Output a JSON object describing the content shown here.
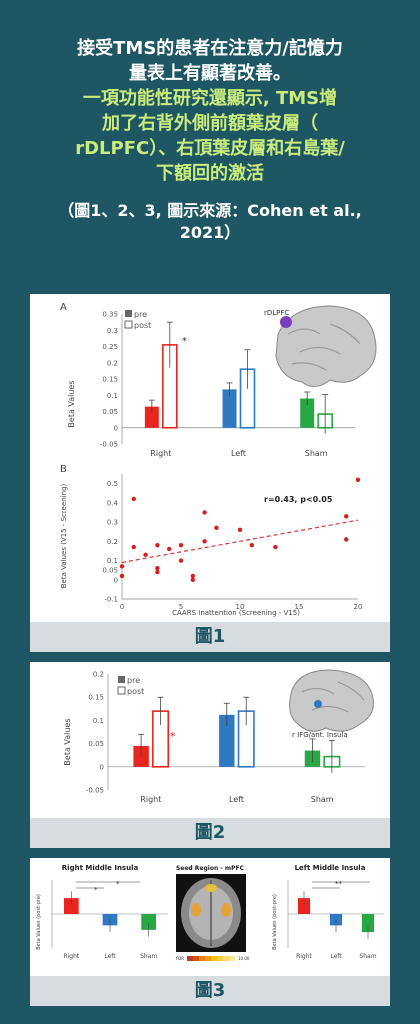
{
  "header": {
    "line1": "接受TMS的患者在注意力/記憶力",
    "line2": "量表上有顯著改善。",
    "line3": "一項功能性研究還顯示, TMS增",
    "line4": "加了右背外側前額葉皮層（",
    "line5": "rDLPFC）、右頂葉皮層和右島葉/",
    "line6": "下額回的激活",
    "citation": "（圖1、2、3, 圖示來源：Cohen et al., 2021）"
  },
  "figure1": {
    "caption": "圖1",
    "panelA": {
      "panel_label": "A",
      "brain_label": "rDLPFC",
      "legend_pre": "pre",
      "legend_post": "post",
      "ylabel": "Beta Values",
      "yticks": [
        "0.35",
        "0.3",
        "0.25",
        "0.2",
        "0.15",
        "0.1",
        "0.05",
        "0",
        "-0.05"
      ],
      "star": "*",
      "chart_data": {
        "type": "bar",
        "categories": [
          "Right",
          "Left",
          "Sham"
        ],
        "series": [
          {
            "name": "pre",
            "values": [
              0.065,
              0.118,
              0.09
            ],
            "errors": [
              0.02,
              0.02,
              0.02
            ]
          },
          {
            "name": "post",
            "values": [
              0.255,
              0.18,
              0.042
            ],
            "errors": [
              0.07,
              0.06,
              0.06
            ]
          }
        ],
        "ylim": [
          -0.05,
          0.35
        ],
        "colors": [
          "#e8251f",
          "#2f78c2",
          "#28a745"
        ]
      }
    },
    "panelB": {
      "panel_label": "B",
      "annotation": "r=0.43, p<0.05",
      "xlabel": "CAARS Inattention (Screening - V15)",
      "ylabel": "Beta Values (V15 - Screening)",
      "yticks": [
        "0.5",
        "0.4",
        "0.3",
        "0.2",
        "0.1",
        "0.05",
        "0",
        "-0.1"
      ],
      "xticks": [
        "0",
        "5",
        "10",
        "15",
        "20"
      ],
      "chart_data": {
        "type": "scatter",
        "x": [
          0,
          0,
          1,
          1,
          2,
          3,
          3,
          3,
          4,
          5,
          5,
          6,
          6,
          7,
          7,
          8,
          10,
          11,
          13,
          19,
          19,
          20
        ],
        "y": [
          0.07,
          0.02,
          0.17,
          0.42,
          0.13,
          0.18,
          0.06,
          0.04,
          0.16,
          0.1,
          0.18,
          0.02,
          0.0,
          0.35,
          0.2,
          0.27,
          0.26,
          0.18,
          0.17,
          0.21,
          0.33,
          0.52
        ],
        "trend": [
          [
            0,
            0.09
          ],
          [
            20,
            0.31
          ]
        ],
        "xlim": [
          0,
          20
        ],
        "ylim": [
          -0.1,
          0.55
        ]
      }
    }
  },
  "figure2": {
    "caption": "圖2",
    "brain_label": "r IFG/ant. Insula",
    "legend_pre": "pre",
    "legend_post": "post",
    "ylabel": "Beta Values",
    "yticks": [
      "0.2",
      "0.15",
      "0.1",
      "0.05",
      "0",
      "-0.05"
    ],
    "star": "*",
    "chart_data": {
      "type": "bar",
      "categories": [
        "Right",
        "Left",
        "Sham"
      ],
      "series": [
        {
          "name": "pre",
          "values": [
            0.045,
            0.112,
            0.035
          ],
          "errors": [
            0.025,
            0.025,
            0.025
          ]
        },
        {
          "name": "post",
          "values": [
            0.12,
            0.12,
            0.022
          ],
          "errors": [
            0.03,
            0.03,
            0.035
          ]
        }
      ],
      "ylim": [
        -0.05,
        0.2
      ],
      "colors": [
        "#e8251f",
        "#2f78c2",
        "#28a745"
      ]
    }
  },
  "figure3": {
    "caption": "圖3",
    "left_title": "Right Middle Insula",
    "center_title": "Seed Region - mPFC",
    "right_title": "Left Middle Insula",
    "ylabel": "Beta Values (post-pre)",
    "stars": [
      "*",
      "*",
      "**"
    ],
    "colorbar_left": "FDR",
    "colorbar_right": "10.00",
    "chart_data": [
      {
        "type": "bar",
        "title": "Right Middle Insula",
        "categories": [
          "Right",
          "Left",
          "Sham"
        ],
        "values": [
          0.07,
          -0.05,
          -0.07
        ],
        "colors": [
          "#e8251f",
          "#2f78c2",
          "#28a745"
        ],
        "ylim": [
          -0.15,
          0.15
        ]
      },
      {
        "type": "bar",
        "title": "Left Middle Insula",
        "categories": [
          "Right",
          "Left",
          "Sham"
        ],
        "values": [
          0.07,
          -0.05,
          -0.08
        ],
        "colors": [
          "#e8251f",
          "#2f78c2",
          "#28a745"
        ],
        "ylim": [
          -0.15,
          0.15
        ]
      }
    ]
  }
}
